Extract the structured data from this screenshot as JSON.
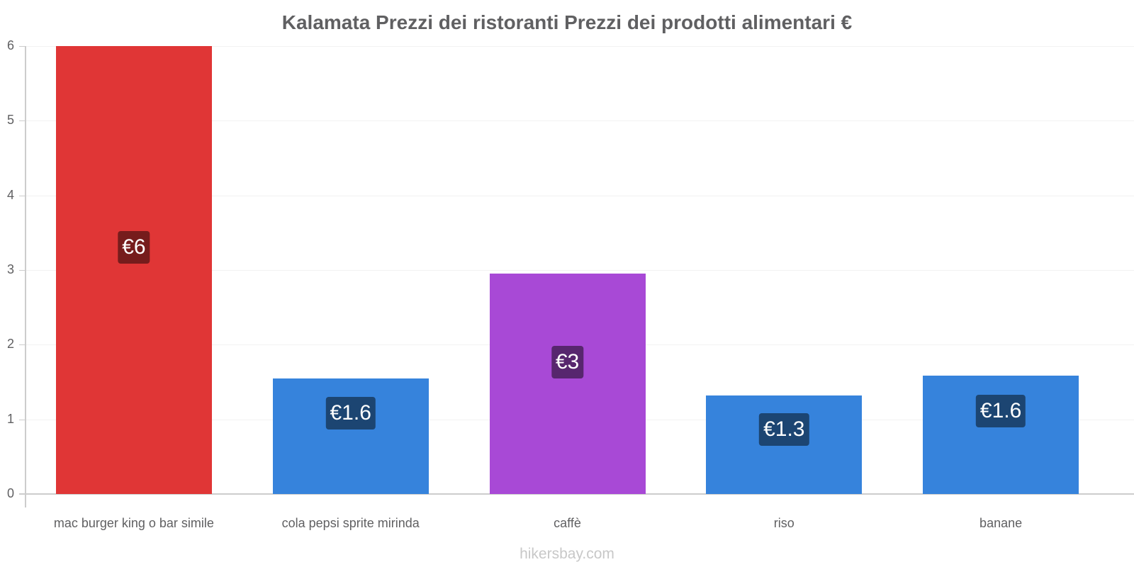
{
  "chart_data": {
    "type": "bar",
    "title": "Kalamata Prezzi dei ristoranti Prezzi dei prodotti alimentari €",
    "xlabel": "",
    "ylabel": "",
    "ylim": [
      0,
      6
    ],
    "yticks": [
      0,
      1,
      2,
      3,
      4,
      5,
      6
    ],
    "grid": true,
    "legend": null,
    "categories": [
      "mac burger king o bar simile",
      "cola pepsi sprite mirinda",
      "caffè",
      "riso",
      "banane"
    ],
    "values": [
      6,
      1.55,
      2.95,
      1.32,
      1.59
    ],
    "value_labels": [
      "€6",
      "€1.6",
      "€3",
      "€1.3",
      "€1.6"
    ],
    "colors": [
      "#e03636",
      "#3683dc",
      "#a849d6",
      "#3683dc",
      "#3683dc"
    ],
    "label_bg_colors": [
      "#761c1c",
      "#1c4572",
      "#57266e",
      "#1c4572",
      "#1c4572"
    ]
  },
  "watermark": "hikersbay.com"
}
